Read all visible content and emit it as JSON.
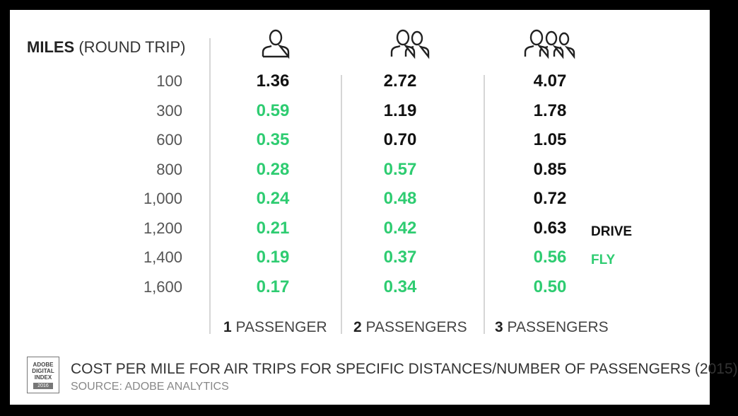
{
  "header": {
    "miles_bold": "MILES",
    "miles_rest": "(ROUND TRIP)"
  },
  "legend": {
    "drive": "DRIVE",
    "fly": "FLY"
  },
  "colors": {
    "drive": "#111111",
    "fly": "#2ecc71"
  },
  "icons": [
    "one-person-icon",
    "two-people-icon",
    "three-people-icon"
  ],
  "caption": "COST PER MILE FOR AIR TRIPS FOR SPECIFIC DISTANCES/NUMBER OF PASSENGERS (2015)",
  "source": "SOURCE: ADOBE ANALYTICS",
  "badge": {
    "line1": "ADOBE",
    "line2": "DIGITAL",
    "line3": "INDEX",
    "year": "2016"
  },
  "chart_data": {
    "type": "table",
    "row_header": "MILES (ROUND TRIP)",
    "rows": [
      "100",
      "300",
      "600",
      "800",
      "1,000",
      "1,200",
      "1,400",
      "1,600"
    ],
    "columns": [
      {
        "num": "1",
        "label": "PASSENGER",
        "values": [
          "1.36",
          "0.59",
          "0.35",
          "0.28",
          "0.24",
          "0.21",
          "0.19",
          "0.17"
        ],
        "mode": [
          "drive",
          "fly",
          "fly",
          "fly",
          "fly",
          "fly",
          "fly",
          "fly"
        ]
      },
      {
        "num": "2",
        "label": "PASSENGERS",
        "values": [
          "2.72",
          "1.19",
          "0.70",
          "0.57",
          "0.48",
          "0.42",
          "0.37",
          "0.34"
        ],
        "mode": [
          "drive",
          "drive",
          "drive",
          "fly",
          "fly",
          "fly",
          "fly",
          "fly"
        ]
      },
      {
        "num": "3",
        "label": "PASSENGERS",
        "values": [
          "4.07",
          "1.78",
          "1.05",
          "0.85",
          "0.72",
          "0.63",
          "0.56",
          "0.50"
        ],
        "mode": [
          "drive",
          "drive",
          "drive",
          "drive",
          "drive",
          "drive",
          "fly",
          "fly"
        ]
      }
    ]
  }
}
